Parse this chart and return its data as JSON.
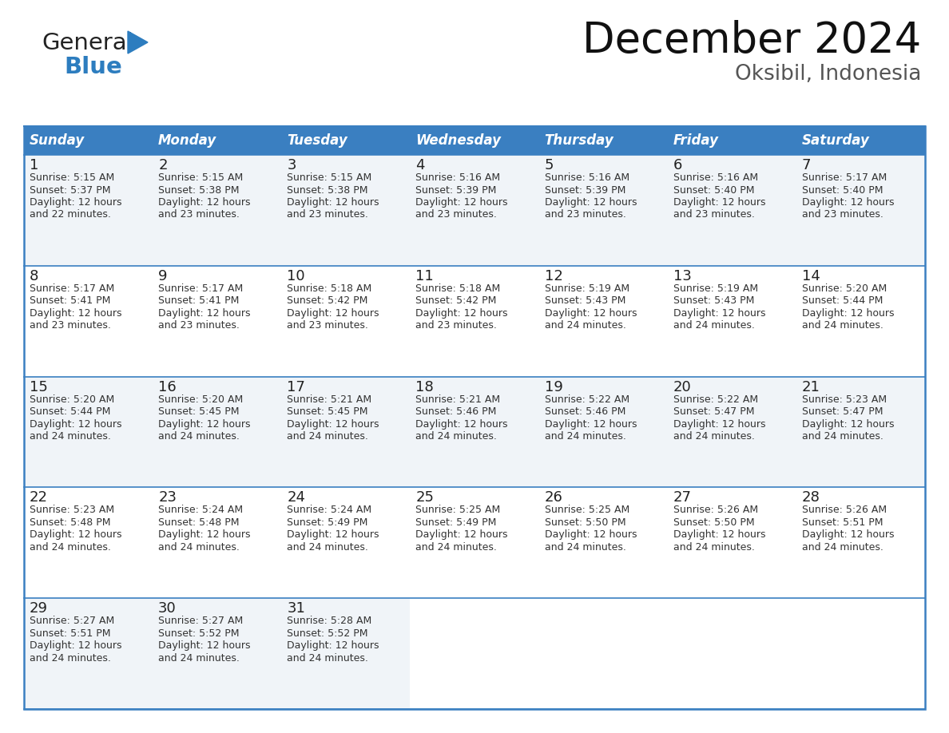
{
  "title": "December 2024",
  "subtitle": "Oksibil, Indonesia",
  "header_color": "#3a7fc1",
  "header_text_color": "#ffffff",
  "cell_bg_even": "#f0f4f8",
  "cell_bg_odd": "#ffffff",
  "day_headers": [
    "Sunday",
    "Monday",
    "Tuesday",
    "Wednesday",
    "Thursday",
    "Friday",
    "Saturday"
  ],
  "days": [
    {
      "day": 1,
      "col": 0,
      "row": 0,
      "sunrise": "5:15 AM",
      "sunset": "5:37 PM",
      "daylight_min": "22"
    },
    {
      "day": 2,
      "col": 1,
      "row": 0,
      "sunrise": "5:15 AM",
      "sunset": "5:38 PM",
      "daylight_min": "23"
    },
    {
      "day": 3,
      "col": 2,
      "row": 0,
      "sunrise": "5:15 AM",
      "sunset": "5:38 PM",
      "daylight_min": "23"
    },
    {
      "day": 4,
      "col": 3,
      "row": 0,
      "sunrise": "5:16 AM",
      "sunset": "5:39 PM",
      "daylight_min": "23"
    },
    {
      "day": 5,
      "col": 4,
      "row": 0,
      "sunrise": "5:16 AM",
      "sunset": "5:39 PM",
      "daylight_min": "23"
    },
    {
      "day": 6,
      "col": 5,
      "row": 0,
      "sunrise": "5:16 AM",
      "sunset": "5:40 PM",
      "daylight_min": "23"
    },
    {
      "day": 7,
      "col": 6,
      "row": 0,
      "sunrise": "5:17 AM",
      "sunset": "5:40 PM",
      "daylight_min": "23"
    },
    {
      "day": 8,
      "col": 0,
      "row": 1,
      "sunrise": "5:17 AM",
      "sunset": "5:41 PM",
      "daylight_min": "23"
    },
    {
      "day": 9,
      "col": 1,
      "row": 1,
      "sunrise": "5:17 AM",
      "sunset": "5:41 PM",
      "daylight_min": "23"
    },
    {
      "day": 10,
      "col": 2,
      "row": 1,
      "sunrise": "5:18 AM",
      "sunset": "5:42 PM",
      "daylight_min": "23"
    },
    {
      "day": 11,
      "col": 3,
      "row": 1,
      "sunrise": "5:18 AM",
      "sunset": "5:42 PM",
      "daylight_min": "23"
    },
    {
      "day": 12,
      "col": 4,
      "row": 1,
      "sunrise": "5:19 AM",
      "sunset": "5:43 PM",
      "daylight_min": "24"
    },
    {
      "day": 13,
      "col": 5,
      "row": 1,
      "sunrise": "5:19 AM",
      "sunset": "5:43 PM",
      "daylight_min": "24"
    },
    {
      "day": 14,
      "col": 6,
      "row": 1,
      "sunrise": "5:20 AM",
      "sunset": "5:44 PM",
      "daylight_min": "24"
    },
    {
      "day": 15,
      "col": 0,
      "row": 2,
      "sunrise": "5:20 AM",
      "sunset": "5:44 PM",
      "daylight_min": "24"
    },
    {
      "day": 16,
      "col": 1,
      "row": 2,
      "sunrise": "5:20 AM",
      "sunset": "5:45 PM",
      "daylight_min": "24"
    },
    {
      "day": 17,
      "col": 2,
      "row": 2,
      "sunrise": "5:21 AM",
      "sunset": "5:45 PM",
      "daylight_min": "24"
    },
    {
      "day": 18,
      "col": 3,
      "row": 2,
      "sunrise": "5:21 AM",
      "sunset": "5:46 PM",
      "daylight_min": "24"
    },
    {
      "day": 19,
      "col": 4,
      "row": 2,
      "sunrise": "5:22 AM",
      "sunset": "5:46 PM",
      "daylight_min": "24"
    },
    {
      "day": 20,
      "col": 5,
      "row": 2,
      "sunrise": "5:22 AM",
      "sunset": "5:47 PM",
      "daylight_min": "24"
    },
    {
      "day": 21,
      "col": 6,
      "row": 2,
      "sunrise": "5:23 AM",
      "sunset": "5:47 PM",
      "daylight_min": "24"
    },
    {
      "day": 22,
      "col": 0,
      "row": 3,
      "sunrise": "5:23 AM",
      "sunset": "5:48 PM",
      "daylight_min": "24"
    },
    {
      "day": 23,
      "col": 1,
      "row": 3,
      "sunrise": "5:24 AM",
      "sunset": "5:48 PM",
      "daylight_min": "24"
    },
    {
      "day": 24,
      "col": 2,
      "row": 3,
      "sunrise": "5:24 AM",
      "sunset": "5:49 PM",
      "daylight_min": "24"
    },
    {
      "day": 25,
      "col": 3,
      "row": 3,
      "sunrise": "5:25 AM",
      "sunset": "5:49 PM",
      "daylight_min": "24"
    },
    {
      "day": 26,
      "col": 4,
      "row": 3,
      "sunrise": "5:25 AM",
      "sunset": "5:50 PM",
      "daylight_min": "24"
    },
    {
      "day": 27,
      "col": 5,
      "row": 3,
      "sunrise": "5:26 AM",
      "sunset": "5:50 PM",
      "daylight_min": "24"
    },
    {
      "day": 28,
      "col": 6,
      "row": 3,
      "sunrise": "5:26 AM",
      "sunset": "5:51 PM",
      "daylight_min": "24"
    },
    {
      "day": 29,
      "col": 0,
      "row": 4,
      "sunrise": "5:27 AM",
      "sunset": "5:51 PM",
      "daylight_min": "24"
    },
    {
      "day": 30,
      "col": 1,
      "row": 4,
      "sunrise": "5:27 AM",
      "sunset": "5:52 PM",
      "daylight_min": "24"
    },
    {
      "day": 31,
      "col": 2,
      "row": 4,
      "sunrise": "5:28 AM",
      "sunset": "5:52 PM",
      "daylight_min": "24"
    }
  ],
  "n_rows": 5,
  "n_cols": 7,
  "title_fontsize": 38,
  "subtitle_fontsize": 19,
  "header_fontsize": 12,
  "day_num_fontsize": 13,
  "cell_text_fontsize": 9,
  "line_color": "#3a7fc1",
  "border_color": "#3a7fc1",
  "fig_width": 11.88,
  "fig_height": 9.18,
  "dpi": 100
}
